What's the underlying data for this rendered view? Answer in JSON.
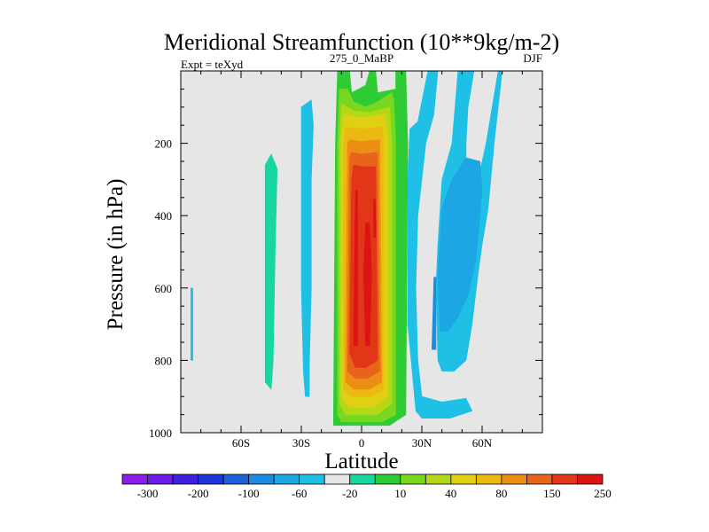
{
  "chart_data": {
    "type": "contour",
    "title": "Meridional Streamfunction (10**9kg/m-2)",
    "subtitle_left": "Expt = teXyd",
    "subtitle_center": "275_0_MaBP",
    "subtitle_right": "DJF",
    "xlabel": "Latitude",
    "ylabel": "Pressure (in hPa)",
    "xlim": [
      -90,
      90
    ],
    "ylim": [
      1000,
      0
    ],
    "y_reversed": true,
    "x_ticks": [
      {
        "value": -60,
        "label": "60S"
      },
      {
        "value": -30,
        "label": "30S"
      },
      {
        "value": 0,
        "label": "0"
      },
      {
        "value": 30,
        "label": "30N"
      },
      {
        "value": 60,
        "label": "60N"
      }
    ],
    "y_ticks": [
      {
        "value": 200,
        "label": "200"
      },
      {
        "value": 400,
        "label": "400"
      },
      {
        "value": 600,
        "label": "600"
      },
      {
        "value": 800,
        "label": "800"
      },
      {
        "value": 1000,
        "label": "1000"
      }
    ],
    "background_color": "#e6e6e6",
    "colorbar": {
      "colors": [
        "#8c1ce8",
        "#6a1de6",
        "#4020e0",
        "#1f35d8",
        "#1c60d8",
        "#1d8be2",
        "#1ca6e4",
        "#1ec0e6",
        "#e6e6e6",
        "#17d6a2",
        "#2ecb35",
        "#78d820",
        "#b4d816",
        "#e0d014",
        "#ecb812",
        "#ec8e14",
        "#e8641a",
        "#e23618",
        "#dc1414"
      ],
      "labels": [
        {
          "boundary": 1,
          "text": "-300"
        },
        {
          "boundary": 3,
          "text": "-200"
        },
        {
          "boundary": 5,
          "text": "-100"
        },
        {
          "boundary": 7,
          "text": "-60"
        },
        {
          "boundary": 9,
          "text": "-20"
        },
        {
          "boundary": 11,
          "text": "10"
        },
        {
          "boundary": 13,
          "text": "40"
        },
        {
          "boundary": 15,
          "text": "80"
        },
        {
          "boundary": 17,
          "text": "150"
        },
        {
          "boundary": 19,
          "text": "250"
        }
      ]
    },
    "regions": [
      {
        "color": "#2ecb35",
        "points": [
          [
            -12,
            0
          ],
          [
            -6,
            0
          ],
          [
            -5,
            60
          ],
          [
            2,
            40
          ],
          [
            4,
            0
          ],
          [
            7,
            0
          ],
          [
            8,
            60
          ],
          [
            17,
            50
          ],
          [
            17,
            0
          ],
          [
            22,
            0
          ],
          [
            23,
            200
          ],
          [
            22,
            950
          ],
          [
            14,
            980
          ],
          [
            -14,
            980
          ],
          [
            -14,
            950
          ],
          [
            -13,
            200
          ]
        ]
      },
      {
        "color": "#78d820",
        "points": [
          [
            -11,
            50
          ],
          [
            -7,
            50
          ],
          [
            -4,
            85
          ],
          [
            2,
            100
          ],
          [
            8,
            85
          ],
          [
            15,
            60
          ],
          [
            16,
            80
          ],
          [
            17,
            200
          ],
          [
            17,
            950
          ],
          [
            10,
            970
          ],
          [
            -10,
            970
          ],
          [
            -12,
            950
          ],
          [
            -12,
            200
          ]
        ]
      },
      {
        "color": "#b4d816",
        "points": [
          [
            -10,
            90
          ],
          [
            -4,
            110
          ],
          [
            4,
            115
          ],
          [
            14,
            100
          ],
          [
            15,
            200
          ],
          [
            15,
            920
          ],
          [
            8,
            950
          ],
          [
            -8,
            950
          ],
          [
            -11,
            920
          ],
          [
            -11,
            200
          ]
        ]
      },
      {
        "color": "#e0d014",
        "points": [
          [
            -9,
            120
          ],
          [
            0,
            130
          ],
          [
            12,
            120
          ],
          [
            13,
            200
          ],
          [
            13,
            900
          ],
          [
            6,
            930
          ],
          [
            -6,
            930
          ],
          [
            -10,
            900
          ],
          [
            -10,
            200
          ]
        ]
      },
      {
        "color": "#ecb812",
        "points": [
          [
            -8,
            155
          ],
          [
            0,
            160
          ],
          [
            10,
            155
          ],
          [
            11,
            200
          ],
          [
            11,
            880
          ],
          [
            5,
            900
          ],
          [
            -5,
            900
          ],
          [
            -9,
            880
          ],
          [
            -9,
            200
          ]
        ]
      },
      {
        "color": "#ec8e14",
        "points": [
          [
            -6,
            190
          ],
          [
            0,
            195
          ],
          [
            9,
            190
          ],
          [
            10,
            860
          ],
          [
            4,
            880
          ],
          [
            -4,
            880
          ],
          [
            -8,
            860
          ],
          [
            -7,
            200
          ]
        ]
      },
      {
        "color": "#e8641a",
        "points": [
          [
            -5,
            225
          ],
          [
            0,
            230
          ],
          [
            8,
            225
          ],
          [
            9,
            830
          ],
          [
            3,
            850
          ],
          [
            -3,
            850
          ],
          [
            -7,
            830
          ],
          [
            -6,
            240
          ]
        ]
      },
      {
        "color": "#e23618",
        "points": [
          [
            -4,
            260
          ],
          [
            1,
            265
          ],
          [
            7,
            265
          ],
          [
            8,
            800
          ],
          [
            2,
            820
          ],
          [
            -3,
            820
          ],
          [
            -6,
            780
          ],
          [
            -5,
            300
          ]
        ]
      },
      {
        "color": "#dc1414",
        "points": [
          [
            -3,
            330
          ],
          [
            -2,
            330
          ],
          [
            -2,
            760
          ],
          [
            -4,
            760
          ]
        ]
      },
      {
        "color": "#dc1414",
        "points": [
          [
            2,
            420
          ],
          [
            4,
            420
          ],
          [
            5,
            560
          ],
          [
            4,
            760
          ],
          [
            2,
            760
          ],
          [
            1,
            560
          ]
        ]
      },
      {
        "color": "#dc1414",
        "points": [
          [
            6,
            350
          ],
          [
            7,
            360
          ],
          [
            7,
            460
          ],
          [
            6,
            460
          ]
        ]
      },
      {
        "color": "#1ec0e6",
        "points": [
          [
            24,
            160
          ],
          [
            28,
            140
          ],
          [
            33,
            0
          ],
          [
            38,
            0
          ],
          [
            36,
            120
          ],
          [
            32,
            200
          ],
          [
            28,
            400
          ],
          [
            27,
            600
          ],
          [
            28,
            800
          ],
          [
            30,
            900
          ],
          [
            40,
            915
          ],
          [
            52,
            905
          ],
          [
            55,
            940
          ],
          [
            44,
            960
          ],
          [
            30,
            960
          ],
          [
            27,
            940
          ],
          [
            23,
            700
          ],
          [
            23,
            300
          ]
        ]
      },
      {
        "color": "#1ec0e6",
        "points": [
          [
            48,
            0
          ],
          [
            56,
            0
          ],
          [
            53,
            100
          ],
          [
            52,
            200
          ],
          [
            52,
            250
          ],
          [
            56,
            270
          ],
          [
            58,
            300
          ],
          [
            62,
            200
          ],
          [
            68,
            0
          ],
          [
            70,
            0
          ],
          [
            66,
            200
          ],
          [
            63,
            380
          ],
          [
            60,
            480
          ],
          [
            58,
            560
          ],
          [
            55,
            700
          ],
          [
            52,
            800
          ],
          [
            46,
            830
          ],
          [
            40,
            830
          ],
          [
            38,
            800
          ],
          [
            37,
            600
          ],
          [
            38,
            480
          ],
          [
            40,
            300
          ],
          [
            45,
            200
          ]
        ]
      },
      {
        "color": "#1ca6e4",
        "points": [
          [
            45,
            300
          ],
          [
            52,
            240
          ],
          [
            59,
            250
          ],
          [
            60,
            330
          ],
          [
            57,
            520
          ],
          [
            53,
            620
          ],
          [
            48,
            680
          ],
          [
            43,
            720
          ],
          [
            39,
            720
          ],
          [
            38,
            560
          ],
          [
            40,
            380
          ]
        ]
      },
      {
        "color": "#1d8be2",
        "points": [
          [
            36,
            570
          ],
          [
            37,
            570
          ],
          [
            37,
            770
          ],
          [
            35,
            770
          ]
        ]
      },
      {
        "color": "#1ec0e6",
        "points": [
          [
            -30,
            100
          ],
          [
            -25,
            80
          ],
          [
            -24,
            150
          ],
          [
            -25,
            300
          ],
          [
            -25,
            600
          ],
          [
            -26,
            810
          ],
          [
            -26,
            900
          ],
          [
            -28,
            900
          ],
          [
            -29,
            830
          ],
          [
            -30,
            600
          ],
          [
            -30,
            300
          ]
        ]
      },
      {
        "color": "#17d6a2",
        "points": [
          [
            -48,
            260
          ],
          [
            -45,
            230
          ],
          [
            -42,
            270
          ],
          [
            -43,
            500
          ],
          [
            -44,
            800
          ],
          [
            -45,
            880
          ],
          [
            -48,
            860
          ],
          [
            -48,
            500
          ]
        ]
      },
      {
        "color": "#1ec0e6",
        "points": [
          [
            -85,
            600
          ],
          [
            -84,
            600
          ],
          [
            -84,
            800
          ],
          [
            -85,
            800
          ]
        ]
      }
    ]
  }
}
